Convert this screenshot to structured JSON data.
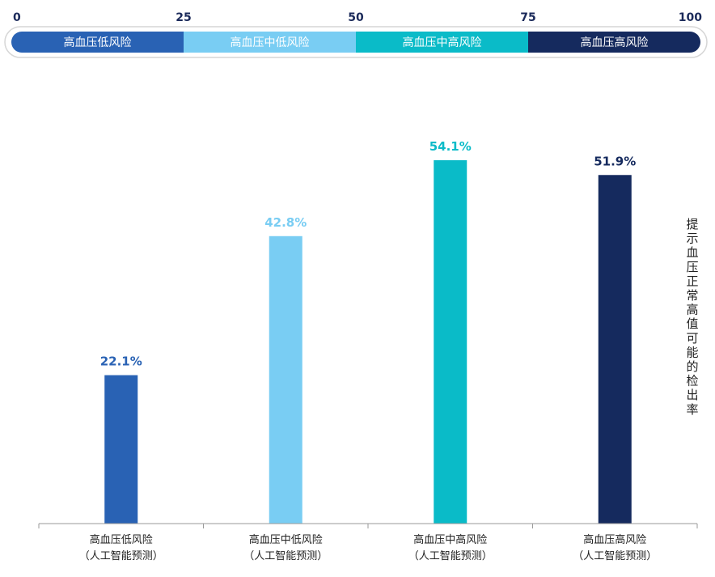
{
  "scale": {
    "ticks": [
      "0",
      "25",
      "50",
      "75",
      "100"
    ],
    "bands": [
      {
        "from": 0,
        "to": 25,
        "label": "高血压低风险",
        "color": "#2962b4"
      },
      {
        "from": 25,
        "to": 50,
        "label": "高血压中低风险",
        "color": "#79cdf3"
      },
      {
        "from": 50,
        "to": 75,
        "label": "高血压中高风险",
        "color": "#0abbc8"
      },
      {
        "from": 75,
        "to": 100,
        "label": "高血压高风险",
        "color": "#152a5e"
      }
    ]
  },
  "chart_data": {
    "type": "bar",
    "categories": [
      [
        "高血压低风险",
        "（人工智能预测）"
      ],
      [
        "高血压中低风险",
        "（人工智能预测）"
      ],
      [
        "高血压中高风险",
        "（人工智能预测）"
      ],
      [
        "高血压高风险",
        "（人工智能预测）"
      ]
    ],
    "values": [
      22.1,
      42.8,
      54.1,
      51.9
    ],
    "value_labels": [
      "22.1%",
      "42.8%",
      "54.1%",
      "51.9%"
    ],
    "colors": [
      "#2962b4",
      "#79cdf3",
      "#0abbc8",
      "#152a5e"
    ],
    "title": "",
    "xlabel": "",
    "ylabel": "提示血压正常高值可能的检出率",
    "ylim": [
      0,
      60
    ],
    "grid": false,
    "legend": "top"
  }
}
